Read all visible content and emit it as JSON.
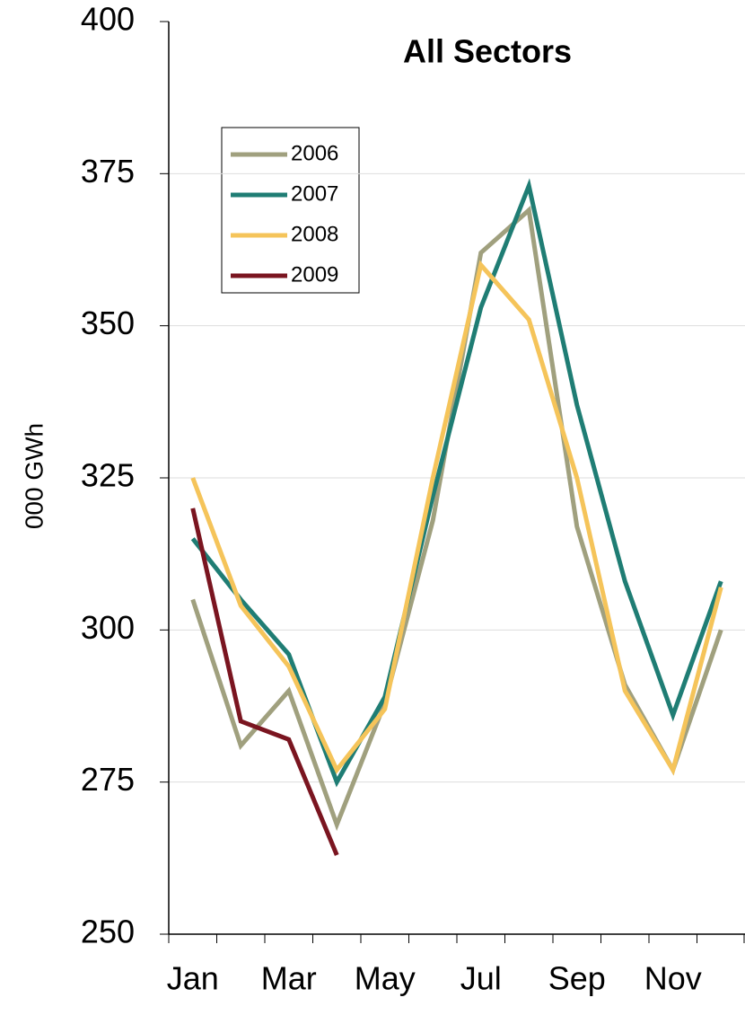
{
  "chart_data": {
    "type": "line",
    "title": "All Sectors",
    "title_color": "#0000cc",
    "y_label": "000 GWh",
    "categories": [
      "Jan",
      null,
      "Mar",
      null,
      "May",
      null,
      "Jul",
      null,
      "Sep",
      null,
      "Nov",
      null
    ],
    "series": [
      {
        "name": "2006",
        "color": "#a0a07e",
        "values": [
          305,
          281,
          290,
          268,
          288,
          318,
          362,
          369,
          317,
          291,
          277,
          300
        ]
      },
      {
        "name": "2007",
        "color": "#1f7d74",
        "values": [
          315,
          305,
          296,
          275,
          289,
          322,
          353,
          373,
          337,
          308,
          286,
          308
        ]
      },
      {
        "name": "2008",
        "color": "#f5c45a",
        "values": [
          325,
          304,
          294,
          277,
          287,
          325,
          360,
          351,
          325,
          290,
          277,
          307
        ]
      },
      {
        "name": "2009",
        "color": "#7a1520",
        "values": [
          320,
          285,
          282,
          263,
          null,
          null,
          null,
          null,
          null,
          null,
          null,
          null
        ]
      }
    ],
    "ylim": [
      250,
      400
    ],
    "yticks": [
      250,
      275,
      300,
      325,
      350,
      375,
      400
    ],
    "grid": true
  }
}
